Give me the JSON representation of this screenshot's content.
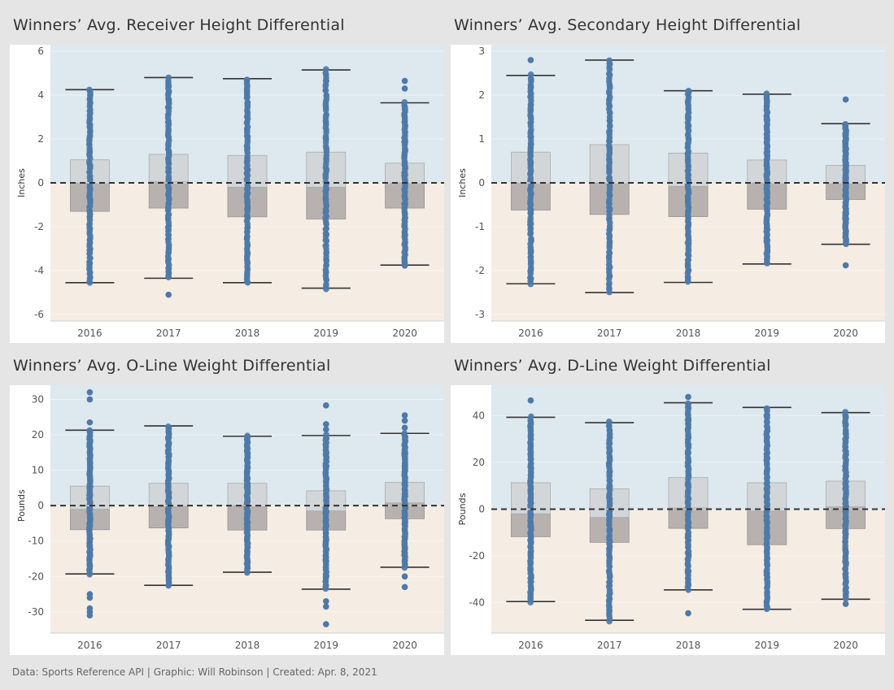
{
  "footer": "Data: Sports Reference API  |  Graphic: Will Robinson  |  Created: Apr. 8, 2021",
  "colors": {
    "positive_bg": "#dde8ef",
    "negative_bg": "#f5ece3",
    "upper_box": "#d3d6d8",
    "lower_box": "#b7b2af",
    "dot": "#4e79a7",
    "zero_line": "#333333"
  },
  "chart_data": [
    {
      "type": "box",
      "title": "Winners’ Avg. Receiver Height Differential",
      "xlabel": "",
      "ylabel": "Inches",
      "categories": [
        "2016",
        "2017",
        "2018",
        "2019",
        "2020"
      ],
      "ylim": [
        -6.3,
        6.3
      ],
      "yticks": [
        -6,
        -4,
        -2,
        0,
        2,
        4,
        6
      ],
      "boxes": [
        {
          "whisker_low": -4.55,
          "q1": -1.3,
          "median": 0.0,
          "q3": 1.05,
          "whisker_high": 4.25,
          "outliers": []
        },
        {
          "whisker_low": -4.35,
          "q1": -1.15,
          "median": 0.05,
          "q3": 1.3,
          "whisker_high": 4.8,
          "outliers": [
            -5.1
          ]
        },
        {
          "whisker_low": -4.55,
          "q1": -1.55,
          "median": -0.2,
          "q3": 1.25,
          "whisker_high": 4.75,
          "outliers": []
        },
        {
          "whisker_low": -4.8,
          "q1": -1.65,
          "median": -0.2,
          "q3": 1.4,
          "whisker_high": 5.15,
          "outliers": []
        },
        {
          "whisker_low": -3.75,
          "q1": -1.15,
          "median": 0.0,
          "q3": 0.9,
          "whisker_high": 3.65,
          "outliers": [
            4.3,
            4.65,
            -3.75
          ]
        }
      ]
    },
    {
      "type": "box",
      "title": "Winners’ Avg. Secondary Height Differential",
      "xlabel": "",
      "ylabel": "Inches",
      "categories": [
        "2016",
        "2017",
        "2018",
        "2019",
        "2020"
      ],
      "ylim": [
        -3.15,
        3.15
      ],
      "yticks": [
        -3,
        -2,
        -1,
        0,
        1,
        2,
        3
      ],
      "boxes": [
        {
          "whisker_low": -2.3,
          "q1": -0.62,
          "median": 0.0,
          "q3": 0.7,
          "whisker_high": 2.45,
          "outliers": [
            2.8
          ]
        },
        {
          "whisker_low": -2.5,
          "q1": -0.72,
          "median": 0.0,
          "q3": 0.87,
          "whisker_high": 2.8,
          "outliers": []
        },
        {
          "whisker_low": -2.27,
          "q1": -0.77,
          "median": -0.08,
          "q3": 0.68,
          "whisker_high": 2.1,
          "outliers": []
        },
        {
          "whisker_low": -1.85,
          "q1": -0.6,
          "median": 0.0,
          "q3": 0.52,
          "whisker_high": 2.02,
          "outliers": []
        },
        {
          "whisker_low": -1.4,
          "q1": -0.38,
          "median": -0.02,
          "q3": 0.4,
          "whisker_high": 1.35,
          "outliers": [
            1.9,
            -1.88
          ]
        }
      ]
    },
    {
      "type": "box",
      "title": "Winners’ Avg. O-Line Weight Differential",
      "xlabel": "",
      "ylabel": "Pounds",
      "categories": [
        "2016",
        "2017",
        "2018",
        "2019",
        "2020"
      ],
      "ylim": [
        -36,
        34
      ],
      "yticks": [
        -30,
        -20,
        -10,
        0,
        10,
        20,
        30
      ],
      "boxes": [
        {
          "whisker_low": -19.3,
          "q1": -6.8,
          "median": -1.0,
          "q3": 5.5,
          "whisker_high": 21.3,
          "outliers": [
            23.5,
            30,
            32,
            -25,
            -26,
            -29,
            -30,
            -31
          ]
        },
        {
          "whisker_low": -22.5,
          "q1": -6.3,
          "median": -0.3,
          "q3": 6.3,
          "whisker_high": 22.5,
          "outliers": []
        },
        {
          "whisker_low": -18.8,
          "q1": -6.9,
          "median": 0.0,
          "q3": 6.3,
          "whisker_high": 19.6,
          "outliers": []
        },
        {
          "whisker_low": -23.6,
          "q1": -6.9,
          "median": -1.5,
          "q3": 4.2,
          "whisker_high": 19.8,
          "outliers": [
            21.5,
            23,
            28.3,
            -27,
            -28.5,
            -33.5
          ]
        },
        {
          "whisker_low": -17.4,
          "q1": -3.7,
          "median": 0.8,
          "q3": 6.6,
          "whisker_high": 20.4,
          "outliers": [
            22,
            24,
            25.5,
            -20,
            -23
          ]
        }
      ]
    },
    {
      "type": "box",
      "title": "Winners’ Avg. D-Line Weight Differential",
      "xlabel": "",
      "ylabel": "Pounds",
      "categories": [
        "2016",
        "2017",
        "2018",
        "2019",
        "2020"
      ],
      "ylim": [
        -53,
        53
      ],
      "yticks": [
        -40,
        -20,
        0,
        20,
        40
      ],
      "boxes": [
        {
          "whisker_low": -39.5,
          "q1": -11.8,
          "median": -2.0,
          "q3": 11.3,
          "whisker_high": 39.3,
          "outliers": [
            46.5
          ]
        },
        {
          "whisker_low": -47.5,
          "q1": -14.2,
          "median": -3.5,
          "q3": 8.7,
          "whisker_high": 37.0,
          "outliers": []
        },
        {
          "whisker_low": -34.5,
          "q1": -8.2,
          "median": 0.5,
          "q3": 13.5,
          "whisker_high": 45.5,
          "outliers": [
            48,
            -44.5
          ]
        },
        {
          "whisker_low": -42.8,
          "q1": -15.2,
          "median": -0.8,
          "q3": 11.3,
          "whisker_high": 43.5,
          "outliers": []
        },
        {
          "whisker_low": -38.5,
          "q1": -8.3,
          "median": 1.0,
          "q3": 12.0,
          "whisker_high": 41.3,
          "outliers": [
            -40.5
          ]
        }
      ]
    }
  ]
}
